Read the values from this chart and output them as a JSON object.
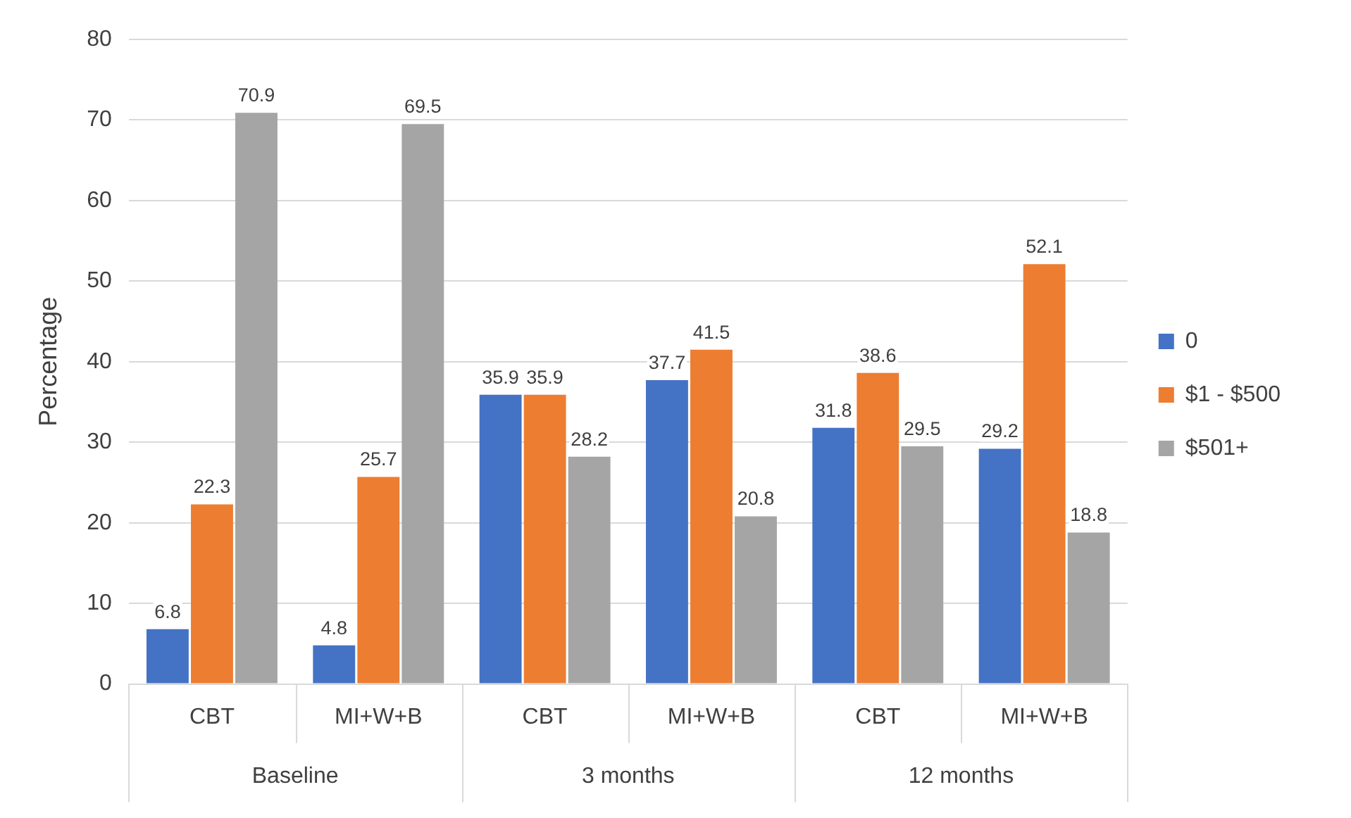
{
  "chart_data": {
    "type": "bar",
    "ylabel": "Percentage",
    "categories": [
      "CBT",
      "MI+W+B",
      "CBT",
      "MI+W+B",
      "CBT",
      "MI+W+B"
    ],
    "annotations": [
      "Baseline",
      "3 months",
      "12 months"
    ],
    "series": [
      {
        "name": "0",
        "color": "#4472c4",
        "values": [
          6.8,
          4.8,
          35.9,
          37.7,
          31.8,
          29.2
        ]
      },
      {
        "name": "$1 - $500",
        "color": "#ed7d31",
        "values": [
          22.3,
          25.7,
          35.9,
          41.5,
          38.6,
          52.1
        ]
      },
      {
        "name": "$501+",
        "color": "#a5a5a5",
        "values": [
          70.9,
          69.5,
          28.2,
          20.8,
          29.5,
          18.8
        ]
      }
    ],
    "ylim": [
      0,
      80
    ],
    "yticks": [
      0,
      10,
      20,
      30,
      40,
      50,
      60,
      70,
      80
    ],
    "grid": "y",
    "legend": "right",
    "data_labels": true
  }
}
